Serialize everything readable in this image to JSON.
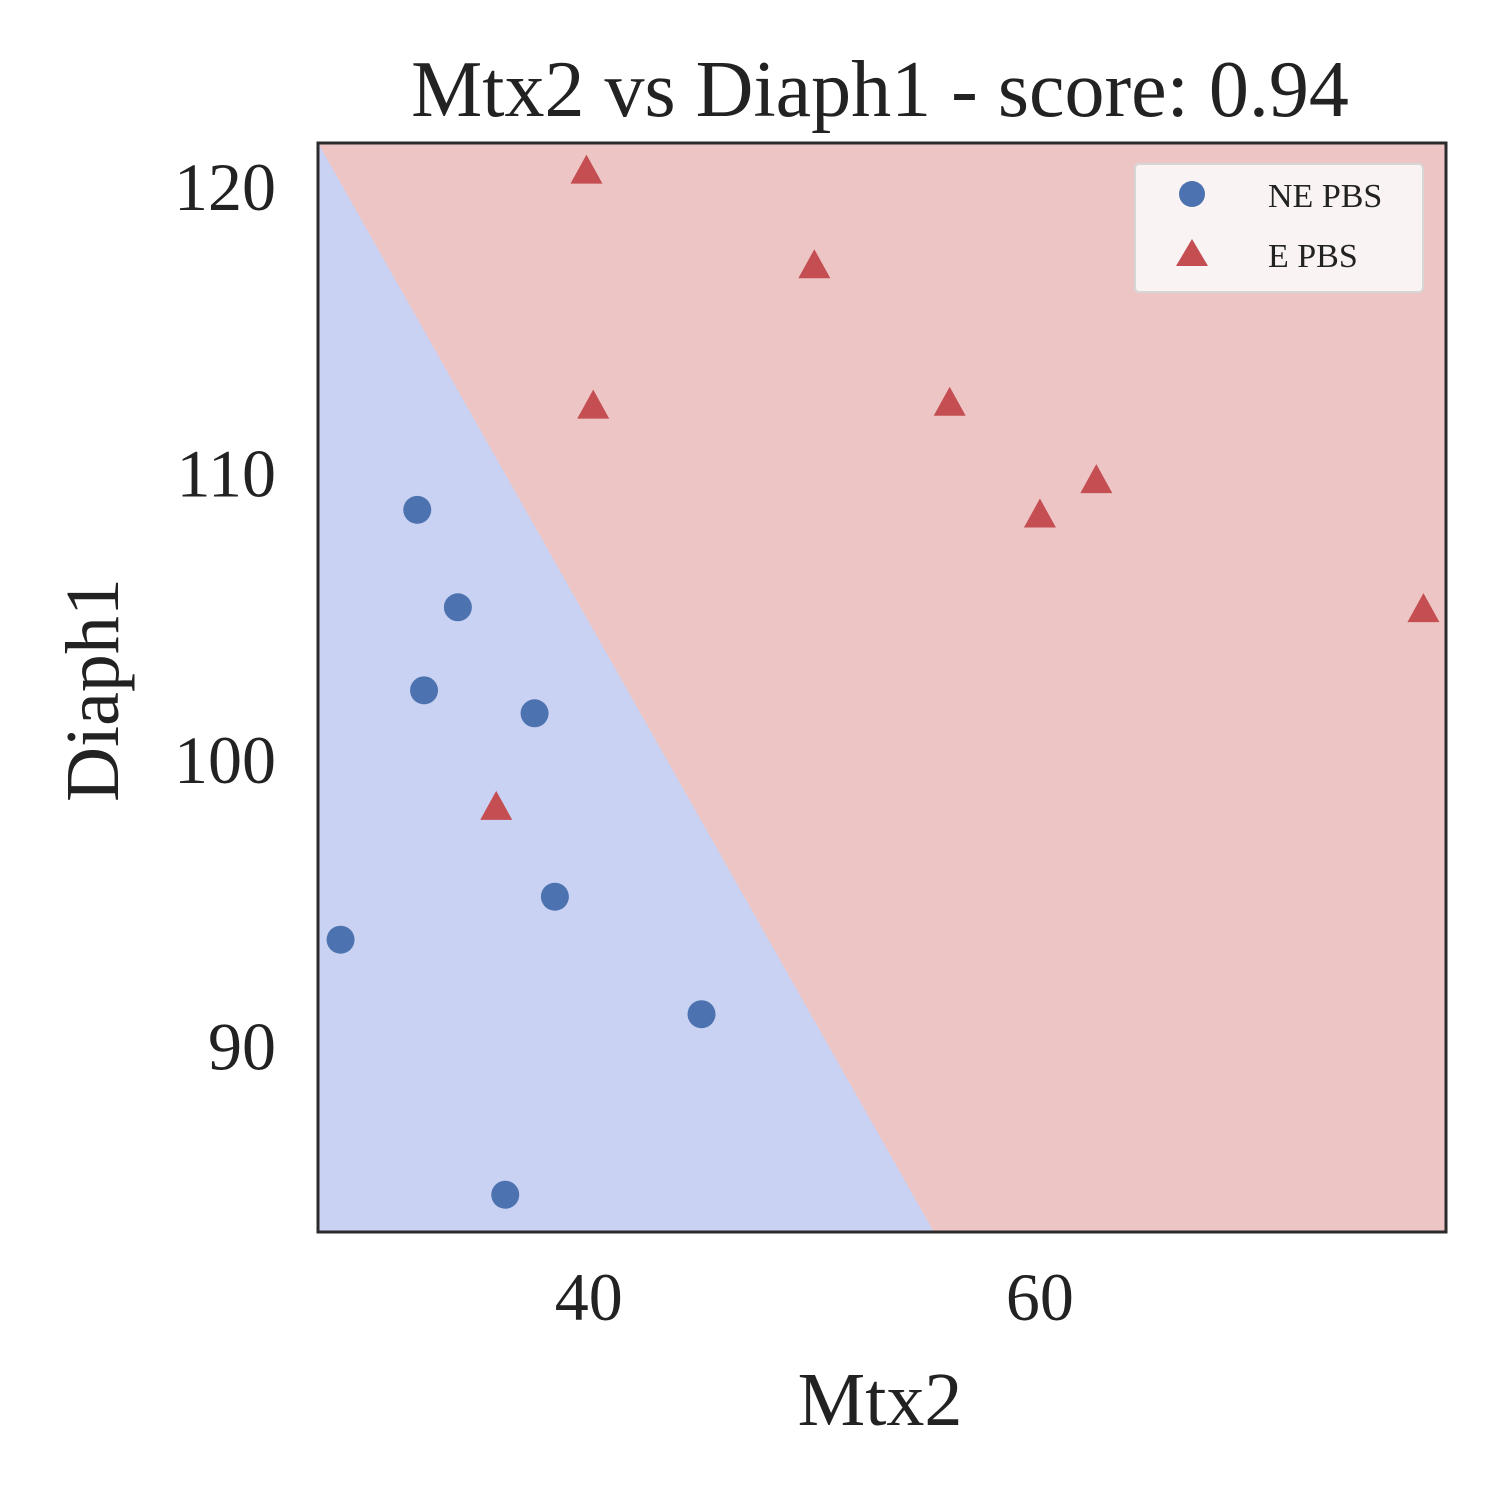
{
  "chart_data": {
    "type": "scatter",
    "title": "Mtx2 vs Diaph1 - score: 0.94",
    "xlabel": "Mtx2",
    "ylabel": "Diaph1",
    "xlim": [
      28.0,
      78.0
    ],
    "ylim": [
      83.5,
      121.5
    ],
    "xticks": [
      40,
      60
    ],
    "xtick_labels": [
      "40",
      "60"
    ],
    "yticks": [
      90,
      100,
      110,
      120
    ],
    "ytick_labels": [
      "90",
      "100",
      "110",
      "120"
    ],
    "grid": false,
    "legend_position": "top-right",
    "decision_boundary": {
      "points": [
        [
          28.0,
          121.5
        ],
        [
          55.3,
          83.5
        ]
      ],
      "lower_left_class": "NE PBS",
      "upper_right_class": "E PBS",
      "region_colors": {
        "NE PBS": "#c9d2f2",
        "E PBS": "#eec5c5"
      }
    },
    "series": [
      {
        "name": "NE PBS",
        "marker": "circle",
        "color": "#4c72b0",
        "points": [
          [
            32.4,
            108.7
          ],
          [
            34.2,
            105.3
          ],
          [
            32.7,
            102.4
          ],
          [
            37.6,
            101.6
          ],
          [
            38.5,
            95.2
          ],
          [
            29.0,
            93.7
          ],
          [
            45.0,
            91.1
          ],
          [
            36.3,
            84.8
          ]
        ]
      },
      {
        "name": "E PBS",
        "marker": "triangle",
        "color": "#c44e52",
        "points": [
          [
            39.9,
            120.5
          ],
          [
            50.0,
            117.2
          ],
          [
            40.2,
            112.3
          ],
          [
            56.0,
            112.4
          ],
          [
            62.5,
            109.7
          ],
          [
            60.0,
            108.5
          ],
          [
            77.0,
            105.2
          ],
          [
            35.9,
            98.3
          ]
        ]
      }
    ]
  }
}
